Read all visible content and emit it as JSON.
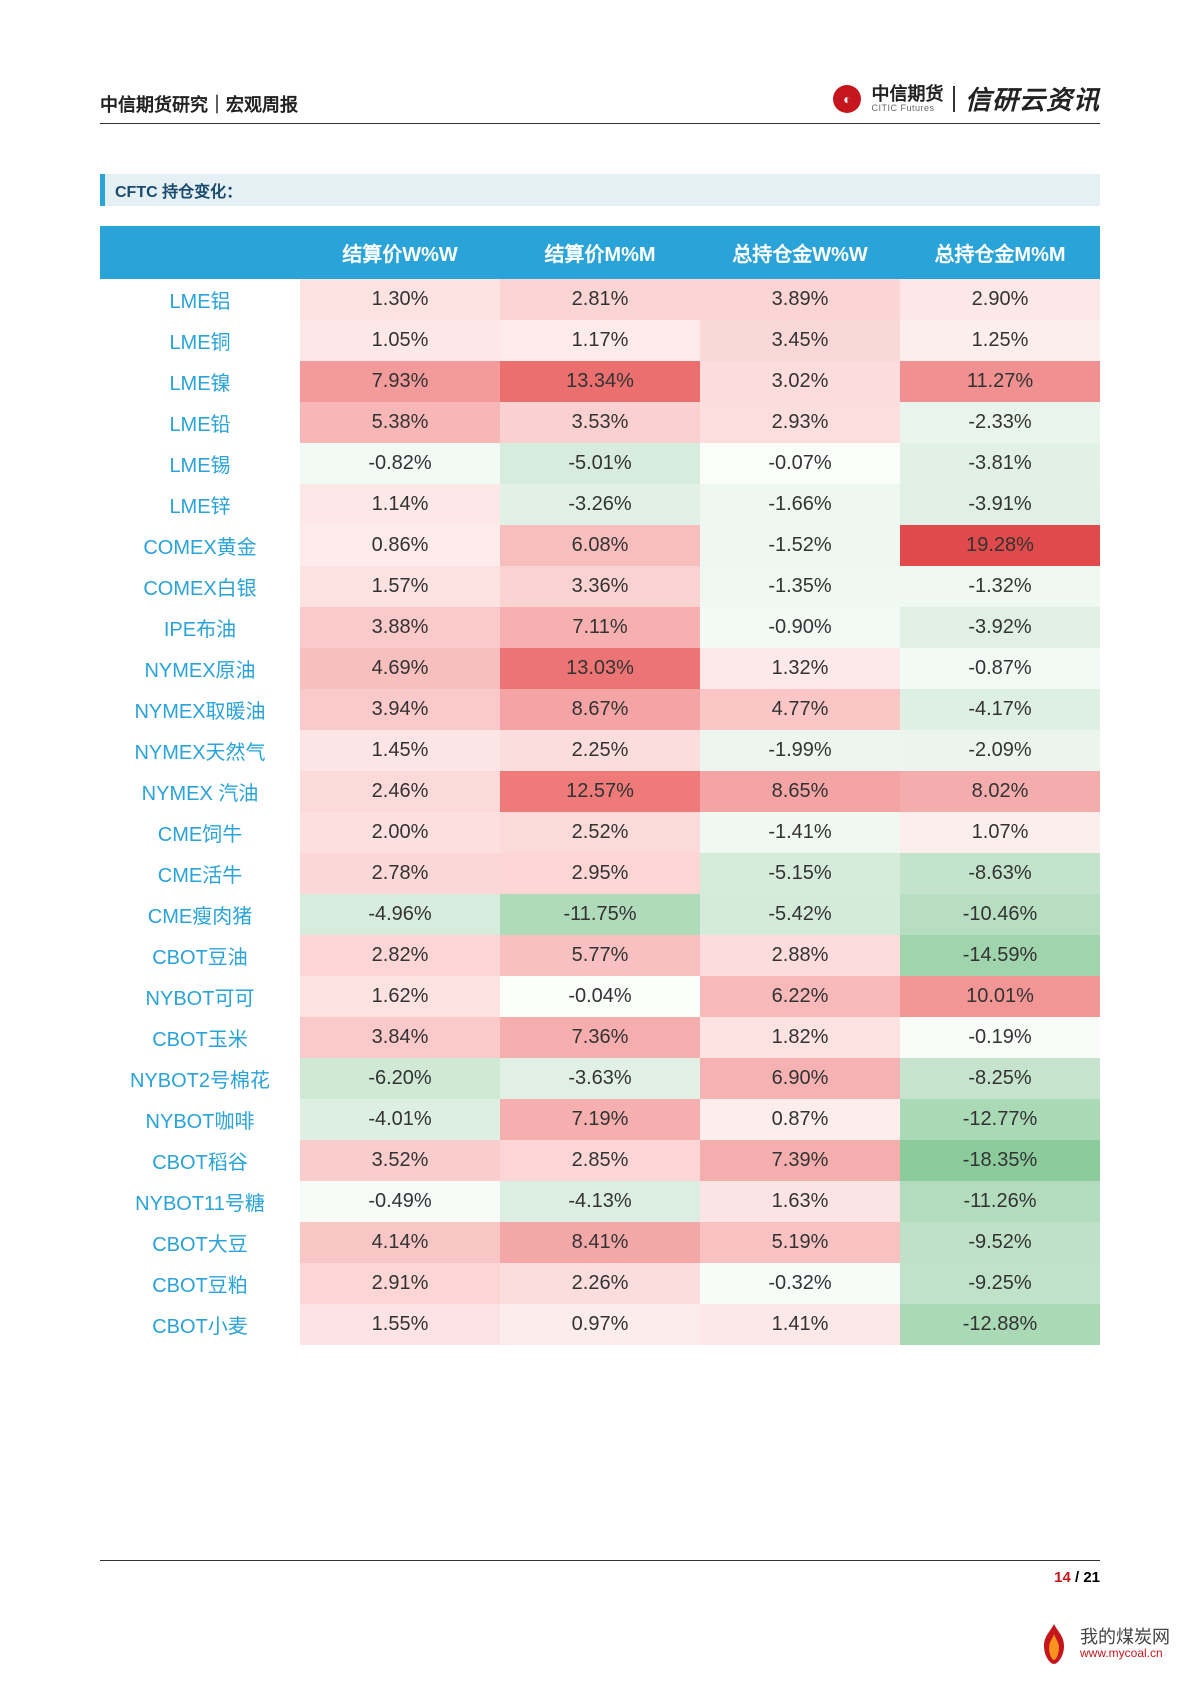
{
  "header": {
    "left": "中信期货研究｜宏观周报",
    "logo1_cn": "中信期货",
    "logo1_en": "CITIC Futures",
    "logo2": "信研云资讯"
  },
  "section_title": "CFTC 持仓变化：",
  "table": {
    "columns": [
      "",
      "结算价W%W",
      "结算价M%M",
      "总持仓金W%W",
      "总持仓金M%M"
    ],
    "rows": [
      {
        "label": "LME铝",
        "cells": [
          {
            "v": "1.30%",
            "bg": "#fde2e2"
          },
          {
            "v": "2.81%",
            "bg": "#fbd4d4"
          },
          {
            "v": "3.89%",
            "bg": "#fbd4d4"
          },
          {
            "v": "2.90%",
            "bg": "#fde7e7"
          }
        ]
      },
      {
        "label": "LME铜",
        "cells": [
          {
            "v": "1.05%",
            "bg": "#fde7e7"
          },
          {
            "v": "1.17%",
            "bg": "#fdeaea"
          },
          {
            "v": "3.45%",
            "bg": "#fbd8d8"
          },
          {
            "v": "1.25%",
            "bg": "#fdeeee"
          }
        ]
      },
      {
        "label": "LME镍",
        "cells": [
          {
            "v": "7.93%",
            "bg": "#f39a9a"
          },
          {
            "v": "13.34%",
            "bg": "#ec6f6f"
          },
          {
            "v": "3.02%",
            "bg": "#fcdcdc"
          },
          {
            "v": "11.27%",
            "bg": "#f19090"
          }
        ]
      },
      {
        "label": "LME铅",
        "cells": [
          {
            "v": "5.38%",
            "bg": "#f7b7b7"
          },
          {
            "v": "3.53%",
            "bg": "#fbd0d0"
          },
          {
            "v": "2.93%",
            "bg": "#fcdede"
          },
          {
            "v": "-2.33%",
            "bg": "#e9f4ec"
          }
        ]
      },
      {
        "label": "LME锡",
        "cells": [
          {
            "v": "-0.82%",
            "bg": "#f3f9f4"
          },
          {
            "v": "-5.01%",
            "bg": "#d7ecdc"
          },
          {
            "v": "-0.07%",
            "bg": "#fafdfa"
          },
          {
            "v": "-3.81%",
            "bg": "#e2f1e6"
          }
        ]
      },
      {
        "label": "LME锌",
        "cells": [
          {
            "v": "1.14%",
            "bg": "#fde7e7"
          },
          {
            "v": "-3.26%",
            "bg": "#e2f1e6"
          },
          {
            "v": "-1.66%",
            "bg": "#eef7f0"
          },
          {
            "v": "-3.91%",
            "bg": "#e0f0e4"
          }
        ]
      },
      {
        "label": "COMEX黄金",
        "cells": [
          {
            "v": "0.86%",
            "bg": "#fdeaea"
          },
          {
            "v": "6.08%",
            "bg": "#f8bdbd"
          },
          {
            "v": "-1.52%",
            "bg": "#eff7f1"
          },
          {
            "v": "19.28%",
            "bg": "#e14a4a"
          }
        ]
      },
      {
        "label": "COMEX白银",
        "cells": [
          {
            "v": "1.57%",
            "bg": "#fde2e2"
          },
          {
            "v": "3.36%",
            "bg": "#fbd2d2"
          },
          {
            "v": "-1.35%",
            "bg": "#f0f8f2"
          },
          {
            "v": "-1.32%",
            "bg": "#f0f8f2"
          }
        ]
      },
      {
        "label": "IPE布油",
        "cells": [
          {
            "v": "3.88%",
            "bg": "#facaca"
          },
          {
            "v": "7.11%",
            "bg": "#f6b0b0"
          },
          {
            "v": "-0.90%",
            "bg": "#f3f9f4"
          },
          {
            "v": "-3.92%",
            "bg": "#e0f0e4"
          }
        ]
      },
      {
        "label": "NYMEX原油",
        "cells": [
          {
            "v": "4.69%",
            "bg": "#f8bfbf"
          },
          {
            "v": "13.03%",
            "bg": "#ed7474"
          },
          {
            "v": "1.32%",
            "bg": "#fde9e9"
          },
          {
            "v": "-0.87%",
            "bg": "#f3f9f4"
          }
        ]
      },
      {
        "label": "NYMEX取暖油",
        "cells": [
          {
            "v": "3.94%",
            "bg": "#facaca"
          },
          {
            "v": "8.67%",
            "bg": "#f4a4a4"
          },
          {
            "v": "4.77%",
            "bg": "#fac6c6"
          },
          {
            "v": "-4.17%",
            "bg": "#def0e3"
          }
        ]
      },
      {
        "label": "NYMEX天然气",
        "cells": [
          {
            "v": "1.45%",
            "bg": "#fde5e5"
          },
          {
            "v": "2.25%",
            "bg": "#fcdddd"
          },
          {
            "v": "-1.99%",
            "bg": "#ecf6ef"
          },
          {
            "v": "-2.09%",
            "bg": "#ebf5ee"
          }
        ]
      },
      {
        "label": "NYMEX 汽油",
        "cells": [
          {
            "v": "2.46%",
            "bg": "#fcdada"
          },
          {
            "v": "12.57%",
            "bg": "#ee7a7a"
          },
          {
            "v": "8.65%",
            "bg": "#f4a4a4"
          },
          {
            "v": "8.02%",
            "bg": "#f5acac"
          }
        ]
      },
      {
        "label": "CME饲牛",
        "cells": [
          {
            "v": "2.00%",
            "bg": "#fcdfdf"
          },
          {
            "v": "2.52%",
            "bg": "#fcdada"
          },
          {
            "v": "-1.41%",
            "bg": "#f0f8f2"
          },
          {
            "v": "1.07%",
            "bg": "#fdeeee"
          }
        ]
      },
      {
        "label": "CME活牛",
        "cells": [
          {
            "v": "2.78%",
            "bg": "#fcd7d7"
          },
          {
            "v": "2.95%",
            "bg": "#fcd5d5"
          },
          {
            "v": "-5.15%",
            "bg": "#d6ecdb"
          },
          {
            "v": "-8.63%",
            "bg": "#c3e3cb"
          }
        ]
      },
      {
        "label": "CME瘦肉猪",
        "cells": [
          {
            "v": "-4.96%",
            "bg": "#d7ecdc"
          },
          {
            "v": "-11.75%",
            "bg": "#b0dbbb"
          },
          {
            "v": "-5.42%",
            "bg": "#d4ebd9"
          },
          {
            "v": "-10.46%",
            "bg": "#b7deC1"
          }
        ]
      },
      {
        "label": "CBOT豆油",
        "cells": [
          {
            "v": "2.82%",
            "bg": "#fcd6d6"
          },
          {
            "v": "5.77%",
            "bg": "#f8c0c0"
          },
          {
            "v": "2.88%",
            "bg": "#fcdcdc"
          },
          {
            "v": "-14.59%",
            "bg": "#a0d4ad"
          }
        ]
      },
      {
        "label": "NYBOT可可",
        "cells": [
          {
            "v": "1.62%",
            "bg": "#fde2e2"
          },
          {
            "v": "-0.04%",
            "bg": "#fbfdfb"
          },
          {
            "v": "6.22%",
            "bg": "#f7b9b9"
          },
          {
            "v": "10.01%",
            "bg": "#f29595"
          }
        ]
      },
      {
        "label": "CBOT玉米",
        "cells": [
          {
            "v": "3.84%",
            "bg": "#facaca"
          },
          {
            "v": "7.36%",
            "bg": "#f6adad"
          },
          {
            "v": "1.82%",
            "bg": "#fde2e2"
          },
          {
            "v": "-0.19%",
            "bg": "#f9fcf9"
          }
        ]
      },
      {
        "label": "NYBOT2号棉花",
        "cells": [
          {
            "v": "-6.20%",
            "bg": "#cfe9d5"
          },
          {
            "v": "-3.63%",
            "bg": "#e1f0e5"
          },
          {
            "v": "6.90%",
            "bg": "#f6b2b2"
          },
          {
            "v": "-8.25%",
            "bg": "#c6e4cd"
          }
        ]
      },
      {
        "label": "NYBOT咖啡",
        "cells": [
          {
            "v": "-4.01%",
            "bg": "#ddefE2"
          },
          {
            "v": "7.19%",
            "bg": "#f6afaf"
          },
          {
            "v": "0.87%",
            "bg": "#fdeded"
          },
          {
            "v": "-12.77%",
            "bg": "#aad9b6"
          }
        ]
      },
      {
        "label": "CBOT稻谷",
        "cells": [
          {
            "v": "3.52%",
            "bg": "#facdcd"
          },
          {
            "v": "2.85%",
            "bg": "#fcd6d6"
          },
          {
            "v": "7.39%",
            "bg": "#f5aeae"
          },
          {
            "v": "-18.35%",
            "bg": "#8bcb9c"
          }
        ]
      },
      {
        "label": "NYBOT11号糖",
        "cells": [
          {
            "v": "-0.49%",
            "bg": "#f6fbf7"
          },
          {
            "v": "-4.13%",
            "bg": "#dceee1"
          },
          {
            "v": "1.63%",
            "bg": "#fde4e4"
          },
          {
            "v": "-11.26%",
            "bg": "#b2dcbd"
          }
        ]
      },
      {
        "label": "CBOT大豆",
        "cells": [
          {
            "v": "4.14%",
            "bg": "#f9c6c6"
          },
          {
            "v": "8.41%",
            "bg": "#f4a7a7"
          },
          {
            "v": "5.19%",
            "bg": "#f9c2c2"
          },
          {
            "v": "-9.52%",
            "bg": "#bee1c7"
          }
        ]
      },
      {
        "label": "CBOT豆粕",
        "cells": [
          {
            "v": "2.91%",
            "bg": "#fcd5d5"
          },
          {
            "v": "2.26%",
            "bg": "#fcdddd"
          },
          {
            "v": "-0.32%",
            "bg": "#f8fcf9"
          },
          {
            "v": "-9.25%",
            "bg": "#c0e2c8"
          }
        ]
      },
      {
        "label": "CBOT小麦",
        "cells": [
          {
            "v": "1.55%",
            "bg": "#fde3e3"
          },
          {
            "v": "0.97%",
            "bg": "#fdecec"
          },
          {
            "v": "1.41%",
            "bg": "#fde8e8"
          },
          {
            "v": "-12.88%",
            "bg": "#a9d9b5"
          }
        ]
      }
    ]
  },
  "footer": {
    "page_cur": "14",
    "sep": " / ",
    "page_total": "21"
  },
  "watermark": {
    "cn": "我的煤炭网",
    "url": "www.mycoal.cn"
  }
}
